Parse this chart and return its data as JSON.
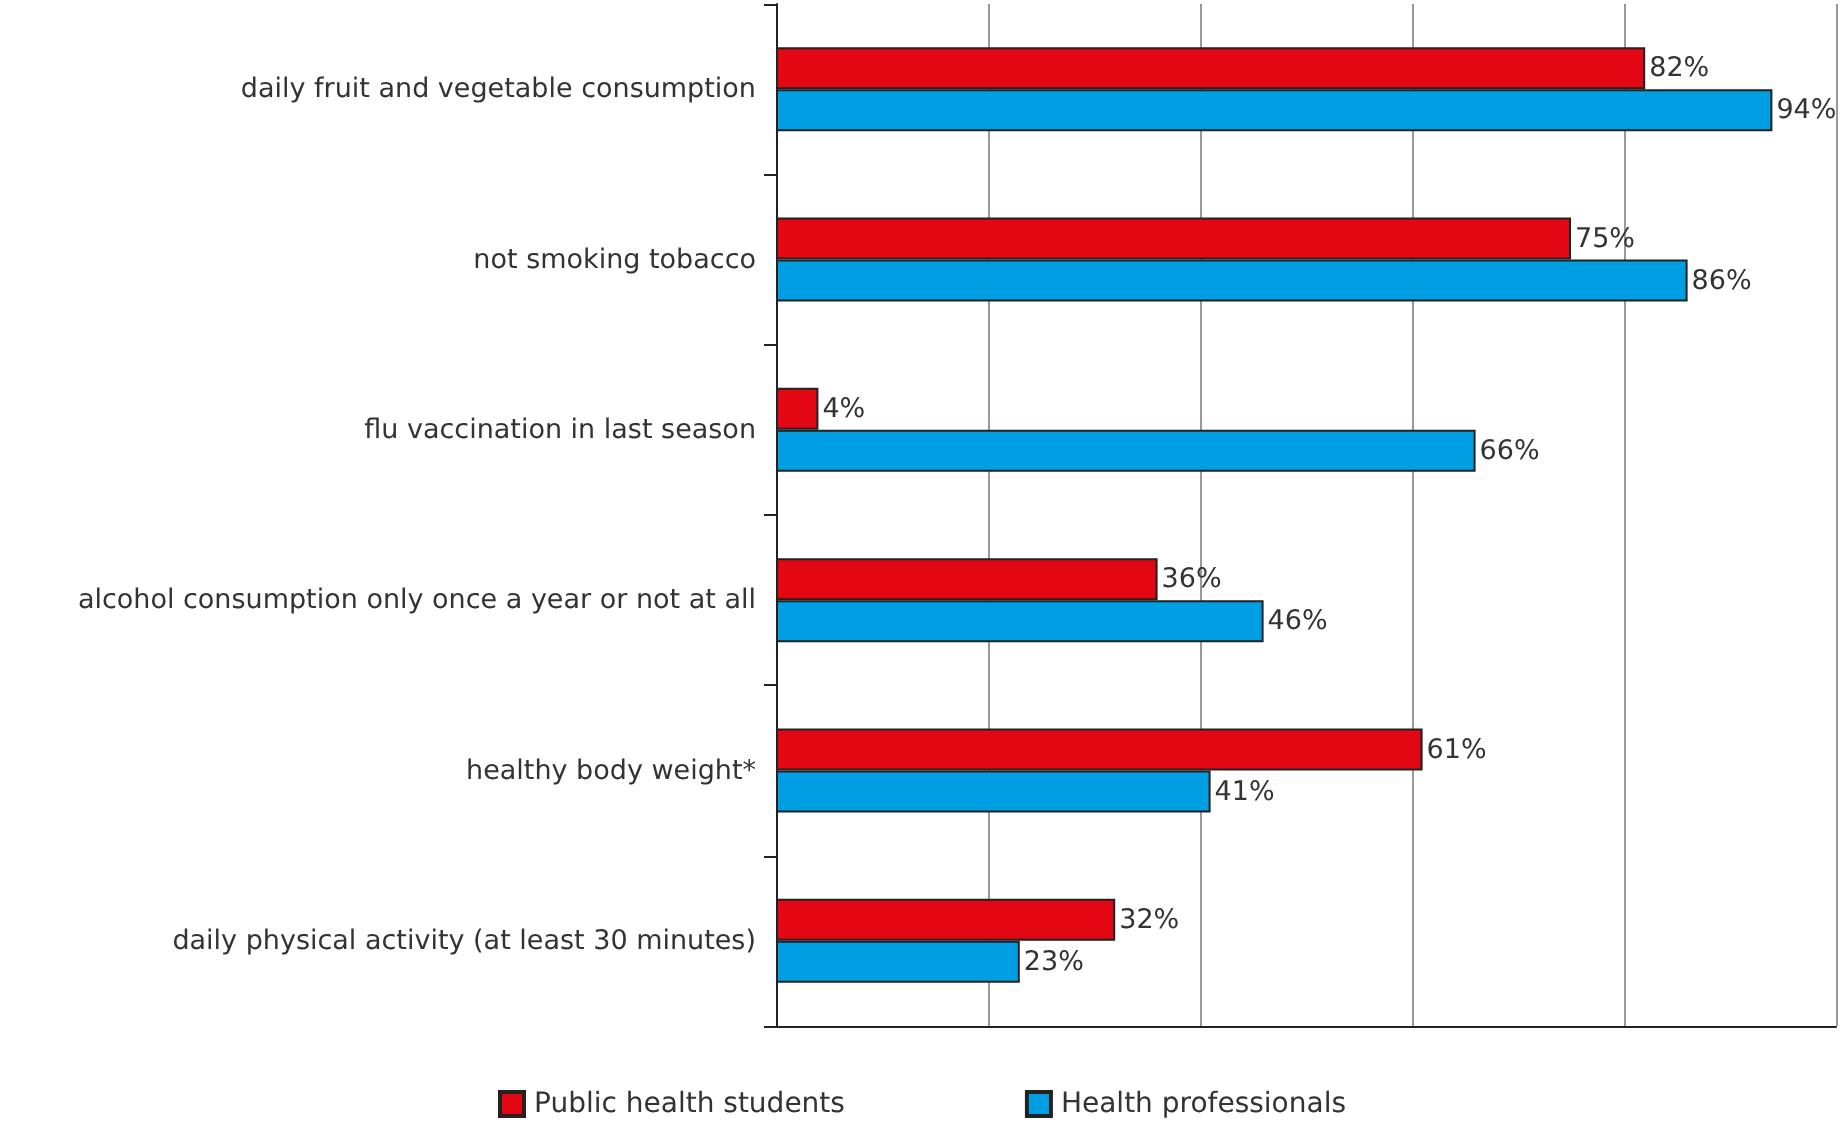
{
  "chart_data": {
    "type": "bar",
    "orientation": "horizontal",
    "categories": [
      "daily fruit and vegetable consumption",
      "not smoking tobacco",
      "flu vaccination in last season",
      "alcohol consumption only once a year or not at all",
      "healthy body weight*",
      "daily physical activity (at least 30 minutes)"
    ],
    "series": [
      {
        "name": "Public health students",
        "color": "#e30613",
        "values": [
          82,
          75,
          4,
          36,
          61,
          32
        ],
        "value_labels": [
          "82%",
          "75%",
          "4%",
          "36%",
          "61%",
          "32%"
        ]
      },
      {
        "name": "Health professionals",
        "color": "#009fe3",
        "values": [
          94,
          86,
          66,
          46,
          41,
          23
        ],
        "value_labels": [
          "94%",
          "86%",
          "66%",
          "46%",
          "41%",
          "23%"
        ]
      }
    ],
    "xlim": [
      0,
      100
    ],
    "xticks": [
      {
        "value": 0,
        "label": null
      },
      {
        "value": 20,
        "label": null
      },
      {
        "value": 40,
        "label": null
      },
      {
        "value": 60,
        "label": null
      },
      {
        "value": 80,
        "label": null
      },
      {
        "value": 100,
        "label": null
      }
    ],
    "tick_labels": "y",
    "grid": "x",
    "legend": "bottom"
  }
}
